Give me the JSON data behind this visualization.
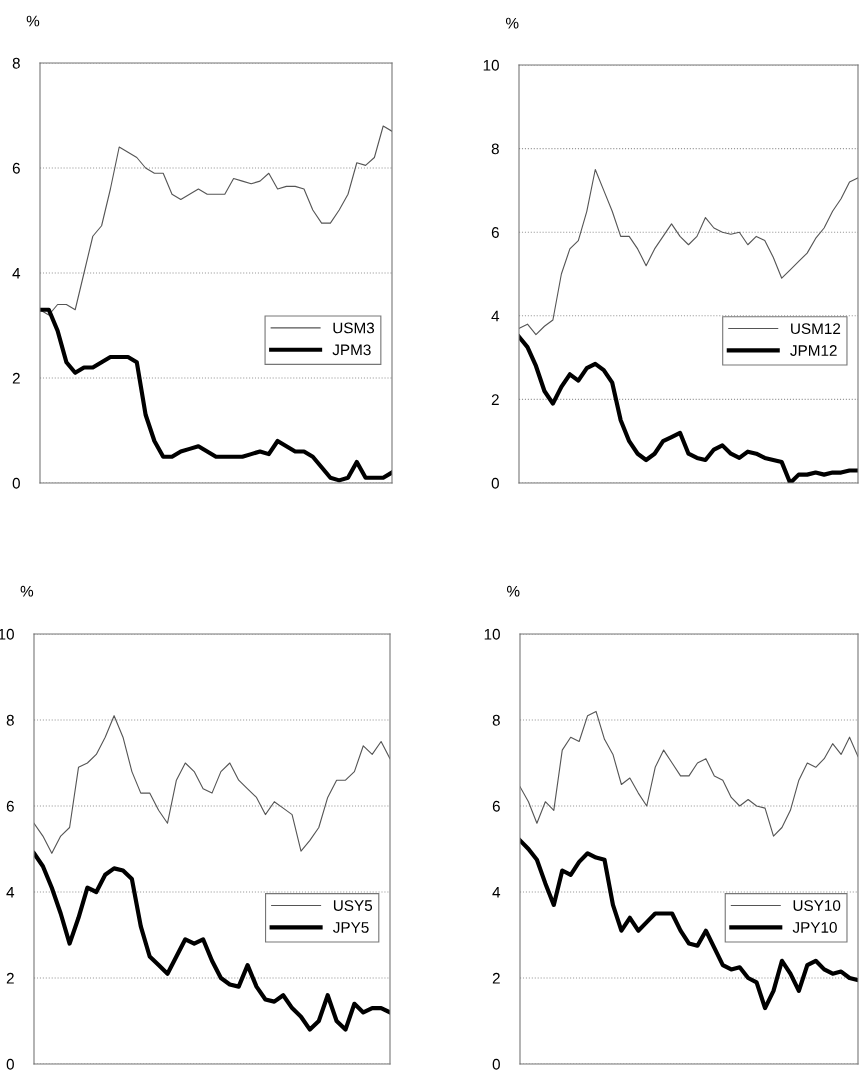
{
  "chart_data": [
    {
      "type": "line",
      "ylabel": "%",
      "ylim": [
        0,
        8
      ],
      "yticks": [
        0,
        2,
        4,
        6,
        8
      ],
      "grid": "y",
      "legend": "center right",
      "tick_labels": "y",
      "line_style": "solid",
      "categories": [
        null,
        null,
        null,
        null,
        null,
        null,
        null,
        null,
        null,
        null,
        null,
        null,
        null,
        null,
        null,
        null,
        null,
        null,
        null,
        null,
        null,
        null,
        null,
        null,
        null,
        null,
        null,
        null,
        null,
        null,
        null,
        null,
        null,
        null,
        null,
        null,
        null,
        null,
        null,
        null,
        null
      ],
      "series": [
        {
          "name": "USM3",
          "color": "#555555",
          "values": [
            3.3,
            3.2,
            3.4,
            3.4,
            3.3,
            4.0,
            4.7,
            4.9,
            5.6,
            6.4,
            6.3,
            6.2,
            6.0,
            5.9,
            5.9,
            5.5,
            5.4,
            5.5,
            5.6,
            5.5,
            5.5,
            5.5,
            5.8,
            5.75,
            5.7,
            5.75,
            5.9,
            5.6,
            5.65,
            5.65,
            5.6,
            5.2,
            4.95,
            4.95,
            5.2,
            5.5,
            6.1,
            6.05,
            6.2,
            6.8,
            6.7
          ]
        },
        {
          "name": "JPM3",
          "color": "#000000",
          "values": [
            3.3,
            3.3,
            2.9,
            2.3,
            2.1,
            2.2,
            2.2,
            2.3,
            2.4,
            2.4,
            2.4,
            2.3,
            1.3,
            0.8,
            0.5,
            0.5,
            0.6,
            0.65,
            0.7,
            0.6,
            0.5,
            0.5,
            0.5,
            0.5,
            0.55,
            0.6,
            0.55,
            0.8,
            0.7,
            0.6,
            0.6,
            0.5,
            0.3,
            0.1,
            0.05,
            0.1,
            0.4,
            0.1,
            0.1,
            0.1,
            0.2
          ]
        }
      ]
    },
    {
      "type": "line",
      "ylabel": "%",
      "ylim": [
        0,
        10
      ],
      "yticks": [
        0,
        2,
        4,
        6,
        8,
        10
      ],
      "grid": "y",
      "legend": "center right",
      "tick_labels": "y",
      "line_style": "solid",
      "categories": [
        null,
        null,
        null,
        null,
        null,
        null,
        null,
        null,
        null,
        null,
        null,
        null,
        null,
        null,
        null,
        null,
        null,
        null,
        null,
        null,
        null,
        null,
        null,
        null,
        null,
        null,
        null,
        null,
        null,
        null,
        null,
        null,
        null,
        null,
        null,
        null,
        null,
        null,
        null,
        null,
        null
      ],
      "series": [
        {
          "name": "USM12",
          "color": "#555555",
          "values": [
            3.7,
            3.8,
            3.55,
            3.75,
            3.9,
            5.0,
            5.6,
            5.8,
            6.5,
            7.5,
            7.0,
            6.5,
            5.9,
            5.9,
            5.6,
            5.2,
            5.6,
            5.9,
            6.2,
            5.9,
            5.7,
            5.9,
            6.35,
            6.1,
            6.0,
            5.95,
            6.0,
            5.7,
            5.9,
            5.8,
            5.4,
            4.9,
            5.1,
            5.3,
            5.5,
            5.85,
            6.1,
            6.5,
            6.8,
            7.2,
            7.3
          ]
        },
        {
          "name": "JPM12",
          "color": "#000000",
          "values": [
            3.5,
            3.25,
            2.8,
            2.2,
            1.9,
            2.3,
            2.6,
            2.45,
            2.75,
            2.85,
            2.7,
            2.4,
            1.5,
            1.0,
            0.7,
            0.55,
            0.7,
            1.0,
            1.1,
            1.2,
            0.7,
            0.6,
            0.55,
            0.8,
            0.9,
            0.7,
            0.6,
            0.75,
            0.7,
            0.6,
            0.55,
            0.5,
            0.0,
            0.2,
            0.2,
            0.25,
            0.2,
            0.25,
            0.25,
            0.3,
            0.3
          ]
        }
      ]
    },
    {
      "type": "line",
      "ylabel": "%",
      "ylim": [
        0,
        10
      ],
      "yticks": [
        0,
        2,
        4,
        6,
        8,
        10
      ],
      "grid": "y",
      "legend": "center right",
      "tick_labels": "y",
      "line_style": "solid",
      "categories": [
        null,
        null,
        null,
        null,
        null,
        null,
        null,
        null,
        null,
        null,
        null,
        null,
        null,
        null,
        null,
        null,
        null,
        null,
        null,
        null,
        null,
        null,
        null,
        null,
        null,
        null,
        null,
        null,
        null,
        null,
        null,
        null,
        null,
        null,
        null,
        null,
        null,
        null,
        null,
        null,
        null
      ],
      "series": [
        {
          "name": "USY5",
          "color": "#555555",
          "values": [
            5.6,
            5.3,
            4.9,
            5.3,
            5.5,
            6.9,
            7.0,
            7.2,
            7.6,
            8.1,
            7.6,
            6.8,
            6.3,
            6.3,
            5.9,
            5.6,
            6.6,
            7.0,
            6.8,
            6.4,
            6.3,
            6.8,
            7.0,
            6.6,
            6.4,
            6.2,
            5.8,
            6.1,
            5.95,
            5.8,
            4.95,
            5.2,
            5.5,
            6.2,
            6.6,
            6.6,
            6.8,
            7.4,
            7.2,
            7.5,
            7.1
          ]
        },
        {
          "name": "JPY5",
          "color": "#000000",
          "values": [
            4.9,
            4.6,
            4.1,
            3.5,
            2.8,
            3.4,
            4.1,
            4.0,
            4.4,
            4.55,
            4.5,
            4.3,
            3.2,
            2.5,
            2.3,
            2.1,
            2.5,
            2.9,
            2.8,
            2.9,
            2.4,
            2.0,
            1.85,
            1.8,
            2.3,
            1.8,
            1.5,
            1.45,
            1.6,
            1.3,
            1.1,
            0.8,
            1.0,
            1.6,
            1.0,
            0.8,
            1.4,
            1.2,
            1.3,
            1.3,
            1.2
          ]
        }
      ]
    },
    {
      "type": "line",
      "ylabel": "%",
      "ylim": [
        0,
        10
      ],
      "yticks": [
        0,
        2,
        4,
        6,
        8,
        10
      ],
      "grid": "y",
      "legend": "center right",
      "tick_labels": "y",
      "line_style": "solid",
      "categories": [
        null,
        null,
        null,
        null,
        null,
        null,
        null,
        null,
        null,
        null,
        null,
        null,
        null,
        null,
        null,
        null,
        null,
        null,
        null,
        null,
        null,
        null,
        null,
        null,
        null,
        null,
        null,
        null,
        null,
        null,
        null,
        null,
        null,
        null,
        null,
        null,
        null,
        null,
        null,
        null,
        null
      ],
      "series": [
        {
          "name": "USY10",
          "color": "#555555",
          "values": [
            6.45,
            6.1,
            5.6,
            6.1,
            5.9,
            7.3,
            7.6,
            7.5,
            8.1,
            8.2,
            7.55,
            7.2,
            6.5,
            6.65,
            6.3,
            6.0,
            6.9,
            7.3,
            7.0,
            6.7,
            6.7,
            7.0,
            7.1,
            6.7,
            6.6,
            6.2,
            6.0,
            6.15,
            6.0,
            5.95,
            5.3,
            5.5,
            5.9,
            6.6,
            7.0,
            6.9,
            7.1,
            7.45,
            7.2,
            7.6,
            7.15
          ]
        },
        {
          "name": "JPY10",
          "color": "#000000",
          "values": [
            5.2,
            5.0,
            4.75,
            4.2,
            3.7,
            4.5,
            4.4,
            4.7,
            4.9,
            4.8,
            4.75,
            3.7,
            3.1,
            3.4,
            3.1,
            3.3,
            3.5,
            3.5,
            3.5,
            3.1,
            2.8,
            2.75,
            3.1,
            2.7,
            2.3,
            2.2,
            2.25,
            2.0,
            1.9,
            1.3,
            1.7,
            2.4,
            2.1,
            1.7,
            2.3,
            2.4,
            2.2,
            2.1,
            2.15,
            2.0,
            1.95
          ]
        }
      ]
    }
  ]
}
